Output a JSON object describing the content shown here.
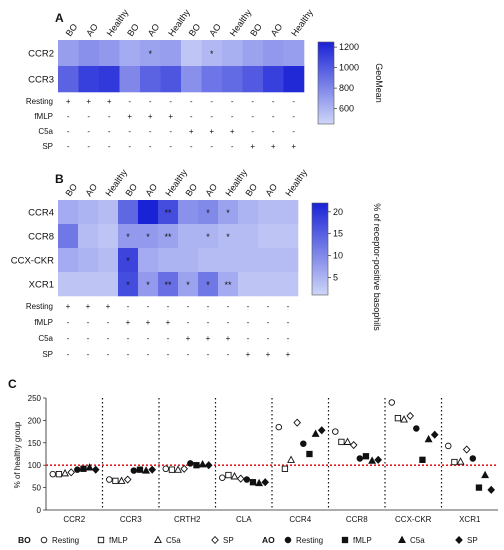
{
  "colors": {
    "low": "#cfd6f8",
    "high": "#1a22d6",
    "ref_line": "#e02020",
    "ink": "#111111"
  },
  "panel_labels": [
    "A",
    "B",
    "C"
  ],
  "col_groups": [
    "BO",
    "AO",
    "Healthy",
    "BO",
    "AO",
    "Healthy",
    "BO",
    "AO",
    "Healthy",
    "BO",
    "AO",
    "Healthy"
  ],
  "chart_data": [
    {
      "type": "heatmap",
      "panel": "A",
      "rows": [
        "CCR2",
        "CCR3"
      ],
      "columns": [
        "BO",
        "AO",
        "Healthy",
        "BO",
        "AO",
        "Healthy",
        "BO",
        "AO",
        "Healthy",
        "BO",
        "AO",
        "Healthy"
      ],
      "values": [
        [
          700,
          760,
          720,
          640,
          680,
          700,
          520,
          580,
          620,
          680,
          720,
          700
        ],
        [
          960,
          1120,
          1150,
          800,
          960,
          1020,
          760,
          880,
          930,
          1000,
          1120,
          1220
        ]
      ],
      "significance": [
        [
          "",
          "",
          "",
          "",
          "*",
          "",
          "",
          "*",
          "",
          "",
          "",
          ""
        ],
        [
          "",
          "",
          "",
          "",
          "",
          "",
          "",
          "",
          "",
          "",
          "",
          ""
        ]
      ],
      "colorbar": {
        "label": "GeoMean",
        "ticks": [
          "1200",
          "1000",
          "800",
          "600"
        ],
        "range": [
          450,
          1250
        ]
      },
      "conditions": [
        {
          "label": "Resting",
          "marks": [
            "+",
            "+",
            "+",
            "-",
            "-",
            "-",
            "-",
            "-",
            "-",
            "-",
            "-",
            "-"
          ]
        },
        {
          "label": "fMLP",
          "marks": [
            "-",
            "-",
            "-",
            "+",
            "+",
            "+",
            "-",
            "-",
            "-",
            "-",
            "-",
            "-"
          ]
        },
        {
          "label": "C5a",
          "marks": [
            "-",
            "-",
            "-",
            "-",
            "-",
            "-",
            "+",
            "+",
            "+",
            "-",
            "-",
            "-"
          ]
        },
        {
          "label": "SP",
          "marks": [
            "-",
            "-",
            "-",
            "-",
            "-",
            "-",
            "-",
            "-",
            "-",
            "+",
            "+",
            "+"
          ]
        }
      ]
    },
    {
      "type": "heatmap",
      "panel": "B",
      "rows": [
        "CCR4",
        "CCR8",
        "CCX-CKR",
        "XCR1"
      ],
      "columns": [
        "BO",
        "AO",
        "Healthy",
        "BO",
        "AO",
        "Healthy",
        "BO",
        "AO",
        "Healthy",
        "BO",
        "AO",
        "Healthy"
      ],
      "values": [
        [
          6,
          5,
          4,
          14,
          22,
          17,
          9,
          10,
          7,
          5,
          4,
          4
        ],
        [
          12,
          4,
          3,
          8,
          8,
          7,
          5,
          5,
          4,
          4,
          3,
          3
        ],
        [
          6,
          5,
          4,
          18,
          6,
          5,
          5,
          4,
          4,
          4,
          4,
          4
        ],
        [
          3,
          3,
          3,
          17,
          8,
          13,
          7,
          12,
          6,
          3,
          3,
          3
        ]
      ],
      "significance": [
        [
          "",
          "",
          "",
          "",
          "",
          "**",
          "",
          "*",
          "*",
          "",
          "",
          ""
        ],
        [
          "",
          "",
          "",
          "*",
          "*",
          "**",
          "",
          "*",
          "*",
          "",
          "",
          ""
        ],
        [
          "",
          "",
          "",
          "*",
          "",
          "",
          "",
          "",
          "",
          "",
          "",
          ""
        ],
        [
          "",
          "",
          "",
          "*",
          "*",
          "**",
          "*",
          "*",
          "**",
          "",
          "",
          ""
        ]
      ],
      "colorbar": {
        "label": "% of receptor-positive basophils",
        "ticks": [
          "20",
          "15",
          "10",
          "5"
        ],
        "range": [
          1,
          22
        ]
      },
      "conditions": [
        {
          "label": "Resting",
          "marks": [
            "+",
            "+",
            "+",
            "-",
            "-",
            "-",
            "-",
            "-",
            "-",
            "-",
            "-",
            "-"
          ]
        },
        {
          "label": "fMLP",
          "marks": [
            "-",
            "-",
            "-",
            "+",
            "+",
            "+",
            "-",
            "-",
            "-",
            "-",
            "-",
            "-"
          ]
        },
        {
          "label": "C5a",
          "marks": [
            "-",
            "-",
            "-",
            "-",
            "-",
            "-",
            "+",
            "+",
            "+",
            "-",
            "-",
            "-"
          ]
        },
        {
          "label": "SP",
          "marks": [
            "-",
            "-",
            "-",
            "-",
            "-",
            "-",
            "-",
            "-",
            "-",
            "+",
            "+",
            "+"
          ]
        }
      ]
    },
    {
      "type": "scatter",
      "panel": "C",
      "ylabel": "% of healthy group",
      "ylim": [
        0,
        250
      ],
      "yticks": [
        "0",
        "50",
        "100",
        "150",
        "200",
        "250"
      ],
      "reference_line": 100,
      "categories": [
        "CCR2",
        "CCR3",
        "CRTH2",
        "CLA",
        "CCR4",
        "CCR8",
        "CCX-CKR",
        "XCR1"
      ],
      "series": [
        {
          "name": "Resting",
          "group": "BO",
          "marker": "circle-open",
          "values": [
            80,
            68,
            92,
            72,
            185,
            175,
            240,
            143
          ]
        },
        {
          "name": "fMLP",
          "group": "BO",
          "marker": "square-open",
          "values": [
            80,
            65,
            90,
            78,
            92,
            152,
            205,
            107
          ]
        },
        {
          "name": "C5a",
          "group": "BO",
          "marker": "triangle-open",
          "values": [
            82,
            65,
            90,
            75,
            112,
            152,
            202,
            108
          ]
        },
        {
          "name": "SP",
          "group": "BO",
          "marker": "diamond-open",
          "values": [
            84,
            68,
            92,
            70,
            195,
            145,
            210,
            135
          ]
        },
        {
          "name": "Resting",
          "group": "AO",
          "marker": "circle-filled",
          "values": [
            90,
            88,
            104,
            68,
            148,
            115,
            182,
            115
          ]
        },
        {
          "name": "fMLP",
          "group": "AO",
          "marker": "square-filled",
          "values": [
            92,
            90,
            100,
            62,
            125,
            120,
            112,
            50
          ]
        },
        {
          "name": "C5a",
          "group": "AO",
          "marker": "triangle-filled",
          "values": [
            95,
            88,
            102,
            60,
            170,
            110,
            158,
            78
          ]
        },
        {
          "name": "SP",
          "group": "AO",
          "marker": "diamond-filled",
          "values": [
            90,
            90,
            100,
            62,
            178,
            112,
            168,
            45
          ]
        }
      ],
      "legend": {
        "groups": [
          {
            "label": "BO",
            "items": [
              "Resting",
              "fMLP",
              "C5a",
              "SP"
            ]
          },
          {
            "label": "AO",
            "items": [
              "Resting",
              "fMLP",
              "C5a",
              "SP"
            ]
          }
        ]
      }
    }
  ]
}
